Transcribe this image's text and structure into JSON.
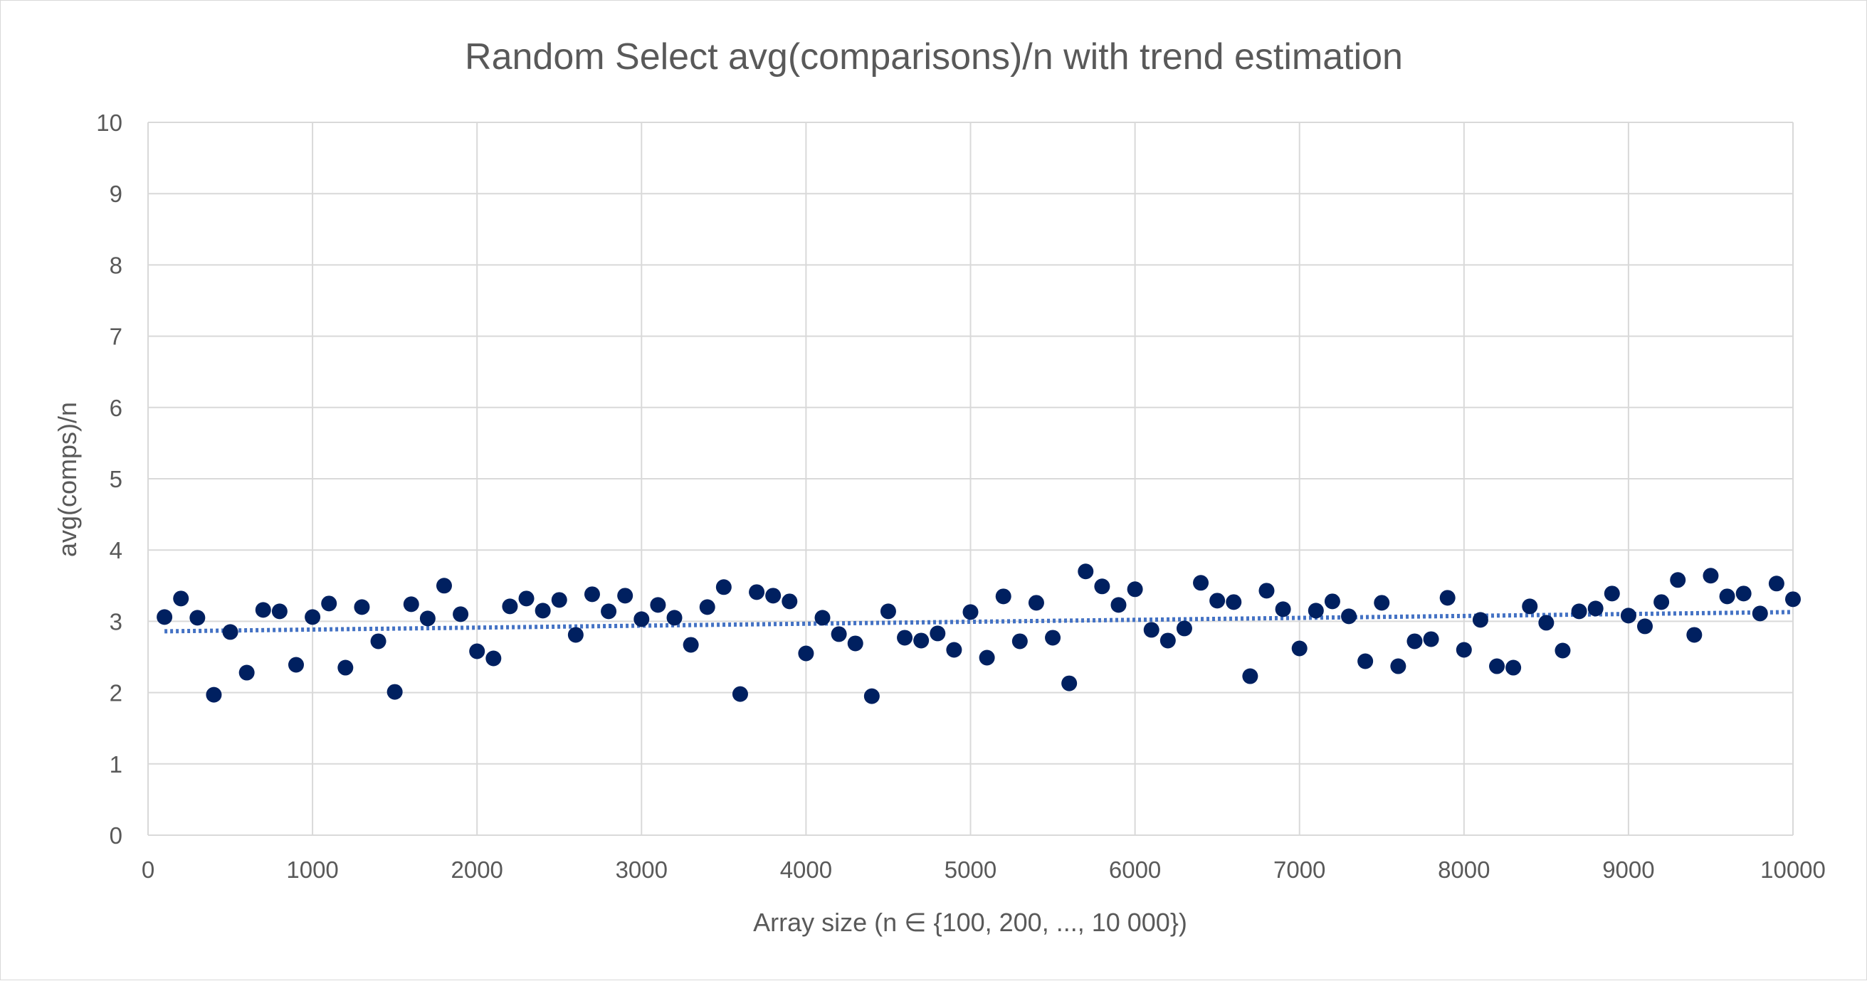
{
  "chart_data": {
    "type": "scatter",
    "title": "Random Select avg(comparisons)/n with trend estimation",
    "xlabel": "Array size (n ∈ {100, 200, ..., 10 000})",
    "ylabel": "avg(comps)/n",
    "xlim": [
      0,
      10000
    ],
    "ylim": [
      0,
      10
    ],
    "x_ticks": [
      "0",
      "1000",
      "2000",
      "3000",
      "4000",
      "5000",
      "6000",
      "7000",
      "8000",
      "9000",
      "10000"
    ],
    "y_ticks": [
      "0",
      "1",
      "2",
      "3",
      "4",
      "5",
      "6",
      "7",
      "8",
      "9",
      "10"
    ],
    "grid": true,
    "legend": "none",
    "point_color": "#002060",
    "trend_color": "#4472c4",
    "trendline": {
      "type": "linear",
      "from": [
        100,
        2.86
      ],
      "to": [
        10000,
        3.13
      ]
    },
    "points": [
      [
        100,
        3.06
      ],
      [
        200,
        3.32
      ],
      [
        300,
        3.05
      ],
      [
        400,
        1.97
      ],
      [
        500,
        2.85
      ],
      [
        600,
        2.28
      ],
      [
        700,
        3.16
      ],
      [
        800,
        3.14
      ],
      [
        900,
        2.39
      ],
      [
        1000,
        3.06
      ],
      [
        1100,
        3.25
      ],
      [
        1200,
        2.35
      ],
      [
        1300,
        3.2
      ],
      [
        1400,
        2.72
      ],
      [
        1500,
        2.01
      ],
      [
        1600,
        3.24
      ],
      [
        1700,
        3.04
      ],
      [
        1800,
        3.5
      ],
      [
        1900,
        3.1
      ],
      [
        2000,
        2.58
      ],
      [
        2100,
        2.48
      ],
      [
        2200,
        3.21
      ],
      [
        2300,
        3.32
      ],
      [
        2400,
        3.15
      ],
      [
        2500,
        3.3
      ],
      [
        2600,
        2.81
      ],
      [
        2700,
        3.38
      ],
      [
        2800,
        3.14
      ],
      [
        2900,
        3.36
      ],
      [
        3000,
        3.03
      ],
      [
        3100,
        3.23
      ],
      [
        3200,
        3.05
      ],
      [
        3300,
        2.67
      ],
      [
        3400,
        3.2
      ],
      [
        3500,
        3.48
      ],
      [
        3600,
        1.98
      ],
      [
        3700,
        3.41
      ],
      [
        3800,
        3.36
      ],
      [
        3900,
        3.28
      ],
      [
        4000,
        2.55
      ],
      [
        4100,
        3.05
      ],
      [
        4200,
        2.82
      ],
      [
        4300,
        2.69
      ],
      [
        4400,
        1.95
      ],
      [
        4500,
        3.14
      ],
      [
        4600,
        2.77
      ],
      [
        4700,
        2.73
      ],
      [
        4800,
        2.83
      ],
      [
        4900,
        2.6
      ],
      [
        5000,
        3.13
      ],
      [
        5100,
        2.49
      ],
      [
        5200,
        3.35
      ],
      [
        5300,
        2.72
      ],
      [
        5400,
        3.26
      ],
      [
        5500,
        2.77
      ],
      [
        5600,
        2.13
      ],
      [
        5700,
        3.7
      ],
      [
        5800,
        3.49
      ],
      [
        5900,
        3.23
      ],
      [
        6000,
        3.45
      ],
      [
        6100,
        2.88
      ],
      [
        6200,
        2.73
      ],
      [
        6300,
        2.9
      ],
      [
        6400,
        3.54
      ],
      [
        6500,
        3.29
      ],
      [
        6600,
        3.27
      ],
      [
        6700,
        2.23
      ],
      [
        6800,
        3.43
      ],
      [
        6900,
        3.17
      ],
      [
        7000,
        2.62
      ],
      [
        7100,
        3.15
      ],
      [
        7200,
        3.28
      ],
      [
        7300,
        3.07
      ],
      [
        7400,
        2.44
      ],
      [
        7500,
        3.26
      ],
      [
        7600,
        2.37
      ],
      [
        7700,
        2.72
      ],
      [
        7800,
        2.75
      ],
      [
        7900,
        3.33
      ],
      [
        8000,
        2.6
      ],
      [
        8100,
        3.02
      ],
      [
        8200,
        2.37
      ],
      [
        8300,
        2.35
      ],
      [
        8400,
        3.21
      ],
      [
        8500,
        2.98
      ],
      [
        8600,
        2.59
      ],
      [
        8700,
        3.14
      ],
      [
        8800,
        3.18
      ],
      [
        8900,
        3.39
      ],
      [
        9000,
        3.08
      ],
      [
        9100,
        2.93
      ],
      [
        9200,
        3.27
      ],
      [
        9300,
        3.58
      ],
      [
        9400,
        2.81
      ],
      [
        9500,
        3.64
      ],
      [
        9600,
        3.35
      ],
      [
        9700,
        3.39
      ],
      [
        9800,
        3.11
      ],
      [
        9900,
        3.53
      ],
      [
        10000,
        3.31
      ]
    ]
  }
}
